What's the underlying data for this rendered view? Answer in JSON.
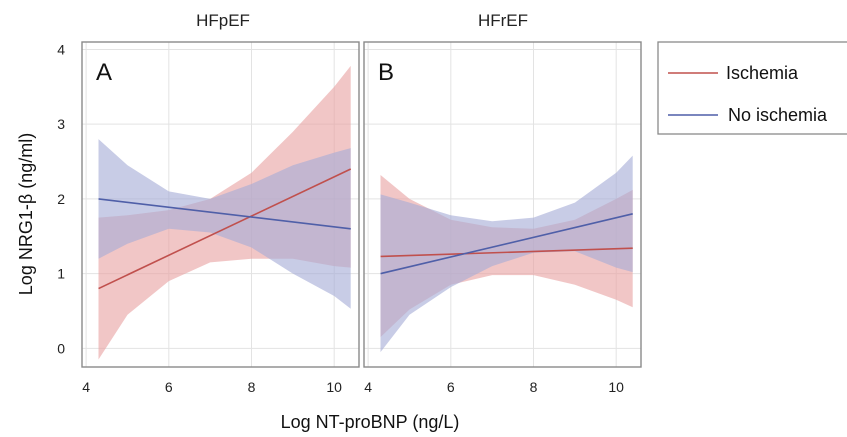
{
  "chart_data": {
    "type": "line",
    "xlabel": "Log NT-proBNP (ng/L)",
    "ylabel": "Log NRG1-β (ng/ml)",
    "xlim": [
      3.9,
      10.6
    ],
    "ylim": [
      -0.25,
      4.1
    ],
    "xticks": [
      4,
      6,
      8,
      10
    ],
    "yticks": [
      0,
      1,
      2,
      3,
      4
    ],
    "grid": true,
    "legend_position": "right",
    "legend": [
      {
        "label": "Ischemia",
        "color": "#c0504d"
      },
      {
        "label": "No ischemia",
        "color": "#4f5fa8"
      }
    ],
    "colors": {
      "ischemia_line": "#c0504d",
      "ischemia_band": "#e8a3a3",
      "no_ischemia_line": "#4f5fa8",
      "no_ischemia_band": "#a7acd7",
      "panel_border": "#8a8a8a",
      "grid": "#e3e3e3"
    },
    "panels": [
      {
        "title": "HFpEF",
        "letter": "A",
        "series": [
          {
            "name": "Ischemia",
            "x": [
              4.3,
              10.4
            ],
            "y": [
              0.8,
              2.4
            ],
            "band": {
              "x": [
                4.3,
                5.0,
                6.0,
                7.0,
                8.0,
                9.0,
                10.0,
                10.4
              ],
              "upper": [
                1.75,
                1.78,
                1.85,
                2.0,
                2.35,
                2.9,
                3.5,
                3.78
              ],
              "lower": [
                -0.15,
                0.45,
                0.9,
                1.15,
                1.2,
                1.2,
                1.1,
                1.08
              ]
            }
          },
          {
            "name": "No ischemia",
            "x": [
              4.3,
              10.4
            ],
            "y": [
              2.0,
              1.6
            ],
            "band": {
              "x": [
                4.3,
                5.0,
                6.0,
                7.0,
                8.0,
                9.0,
                10.0,
                10.4
              ],
              "upper": [
                2.8,
                2.45,
                2.1,
                2.0,
                2.2,
                2.45,
                2.62,
                2.68
              ],
              "lower": [
                1.2,
                1.4,
                1.6,
                1.55,
                1.35,
                1.0,
                0.7,
                0.53
              ]
            }
          }
        ]
      },
      {
        "title": "HFrEF",
        "letter": "B",
        "series": [
          {
            "name": "Ischemia",
            "x": [
              4.3,
              10.4
            ],
            "y": [
              1.23,
              1.34
            ],
            "band": {
              "x": [
                4.3,
                5.0,
                6.0,
                7.0,
                8.0,
                9.0,
                10.0,
                10.4
              ],
              "upper": [
                2.32,
                2.0,
                1.72,
                1.62,
                1.6,
                1.72,
                2.0,
                2.12
              ],
              "lower": [
                0.15,
                0.52,
                0.85,
                0.98,
                0.98,
                0.85,
                0.65,
                0.55
              ]
            }
          },
          {
            "name": "No ischemia",
            "x": [
              4.3,
              10.4
            ],
            "y": [
              1.0,
              1.8
            ],
            "band": {
              "x": [
                4.3,
                5.0,
                6.0,
                7.0,
                8.0,
                9.0,
                10.0,
                10.4
              ],
              "upper": [
                2.06,
                1.95,
                1.78,
                1.7,
                1.75,
                1.95,
                2.35,
                2.58
              ],
              "lower": [
                -0.05,
                0.45,
                0.82,
                1.1,
                1.28,
                1.3,
                1.08,
                1.02
              ]
            }
          }
        ]
      }
    ]
  }
}
